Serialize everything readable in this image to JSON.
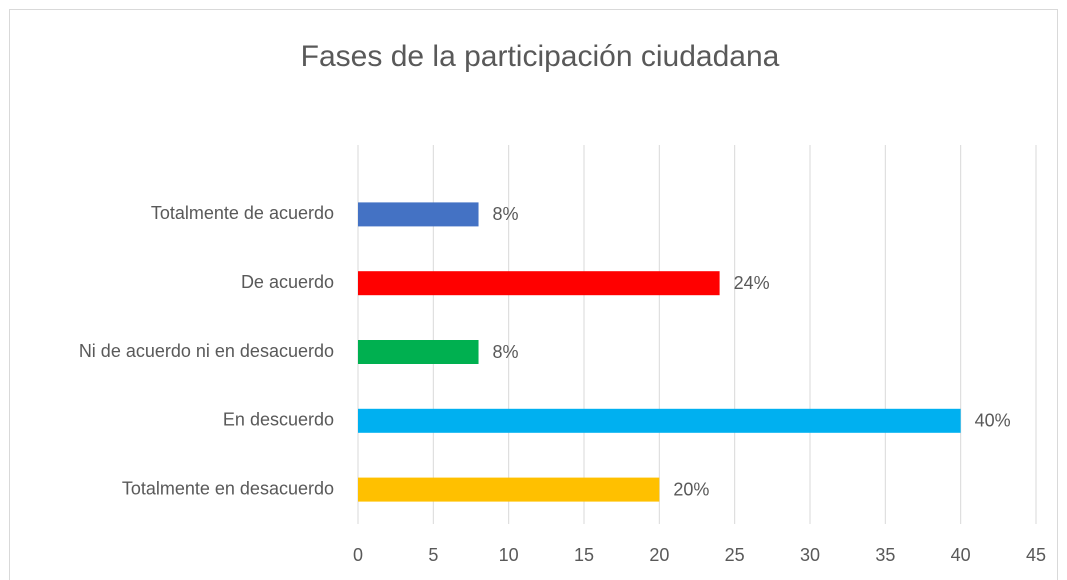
{
  "chart_data": {
    "type": "barh",
    "title": "Fases de la participación ciudadana",
    "categories": [
      "Totalmente de acuerdo",
      "De acuerdo",
      "Ni de acuerdo ni en desacuerdo",
      "En descuerdo",
      "Totalmente en desacuerdo"
    ],
    "values": [
      8,
      24,
      8,
      40,
      20
    ],
    "value_labels": [
      "8%",
      "24%",
      "8%",
      "40%",
      "20%"
    ],
    "colors": [
      "#4472c4",
      "#ff0000",
      "#00b050",
      "#00b0f0",
      "#ffc000"
    ],
    "xlim": [
      0,
      45
    ],
    "xticks": [
      0,
      5,
      10,
      15,
      20,
      25,
      30,
      35,
      40,
      45
    ],
    "grid": true
  }
}
